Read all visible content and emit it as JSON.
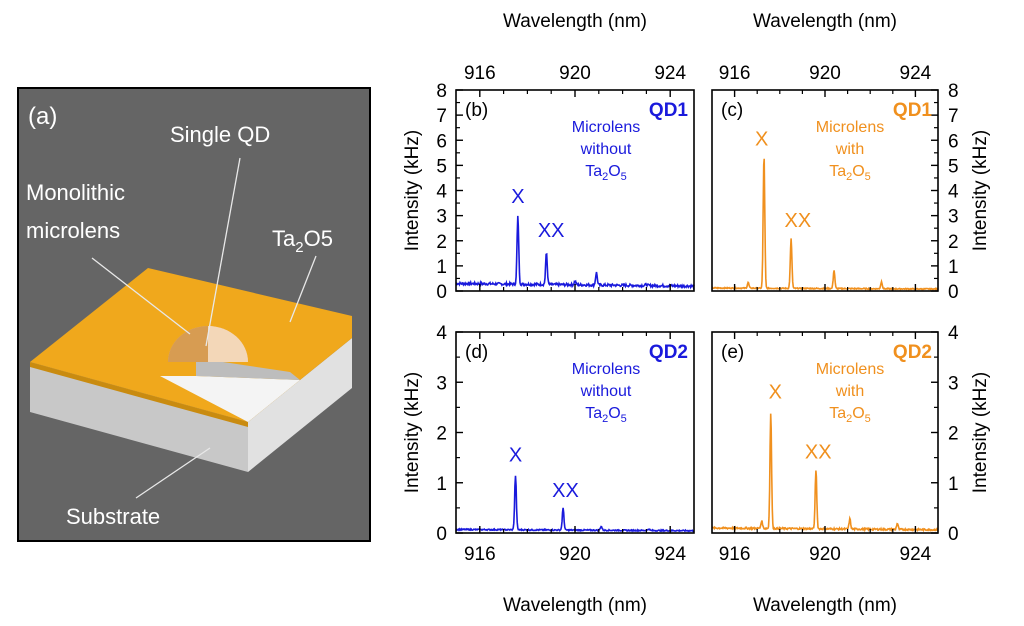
{
  "colors": {
    "blue": "#1a1adc",
    "orange": "#f0901e",
    "tantalum": "#f0a81c",
    "panel_bg": "#656565",
    "frame": "#000000"
  },
  "panel_a": {
    "label": "(a)",
    "callouts": {
      "single_qd": "Single QD",
      "monolithic_1": "Monolithic",
      "monolithic_2": "microlens",
      "ta_base": "Ta",
      "ta_sub": "2",
      "ta_mid": "O",
      "ta_sub2": "5",
      "substrate": "Substrate"
    }
  },
  "axes_text": {
    "wavelength_label": "Wavelength (nm)",
    "intensity_label": "Intensity (kHz)"
  },
  "chart_data": [
    {
      "id": "b",
      "type": "line",
      "label": "(b)",
      "dot": "QD1",
      "note": [
        "Microlens",
        "without",
        "Ta",
        "2",
        "O",
        "5"
      ],
      "color": "#1a1adc",
      "xlim": [
        915,
        925
      ],
      "ylim": [
        0,
        8
      ],
      "xticks": [
        916,
        920,
        924
      ],
      "yticks": [
        0,
        1,
        2,
        3,
        4,
        5,
        6,
        7,
        8
      ],
      "x_top_label": "Wavelength (nm)",
      "x_bottom_label": "",
      "y_label_side": "left",
      "y_label": "Intensity (kHz)",
      "baseline": 0.3,
      "peaks": [
        {
          "x": 917.6,
          "y": 3.0,
          "w": 0.05
        },
        {
          "x": 918.8,
          "y": 1.55,
          "w": 0.05
        },
        {
          "x": 920.0,
          "y": 0.45,
          "w": 0.05
        },
        {
          "x": 920.9,
          "y": 0.8,
          "w": 0.05
        },
        {
          "x": 923.0,
          "y": 0.35,
          "w": 0.05
        }
      ],
      "annotations": [
        {
          "text": "X",
          "x": 917.6,
          "y": 3.5
        },
        {
          "text": "XX",
          "x": 919.0,
          "y": 2.15
        }
      ]
    },
    {
      "id": "c",
      "type": "line",
      "label": "(c)",
      "dot": "QD1",
      "note": [
        "Microlens",
        "with",
        "Ta",
        "2",
        "O",
        "5"
      ],
      "color": "#f0901e",
      "xlim": [
        915,
        925
      ],
      "ylim": [
        0,
        8
      ],
      "xticks": [
        916,
        920,
        924
      ],
      "yticks": [
        0,
        1,
        2,
        3,
        4,
        5,
        6,
        7,
        8
      ],
      "x_top_label": "Wavelength (nm)",
      "x_bottom_label": "",
      "y_label_side": "right",
      "y_label": "Intensity (kHz)",
      "baseline": 0.12,
      "peaks": [
        {
          "x": 916.6,
          "y": 0.35,
          "w": 0.05
        },
        {
          "x": 917.3,
          "y": 5.45,
          "w": 0.05
        },
        {
          "x": 918.5,
          "y": 2.1,
          "w": 0.05
        },
        {
          "x": 920.4,
          "y": 0.85,
          "w": 0.05
        },
        {
          "x": 922.5,
          "y": 0.4,
          "w": 0.05
        }
      ],
      "annotations": [
        {
          "text": "X",
          "x": 917.2,
          "y": 5.8
        },
        {
          "text": "XX",
          "x": 918.8,
          "y": 2.55
        }
      ]
    },
    {
      "id": "d",
      "type": "line",
      "label": "(d)",
      "dot": "QD2",
      "note": [
        "Microlens",
        "without",
        "Ta",
        "2",
        "O",
        "5"
      ],
      "color": "#1a1adc",
      "xlim": [
        915,
        925
      ],
      "ylim": [
        0,
        4
      ],
      "xticks": [
        916,
        920,
        924
      ],
      "yticks": [
        0,
        1,
        2,
        3,
        4
      ],
      "x_top_label": "",
      "x_bottom_label": "Wavelength (nm)",
      "y_label_side": "left",
      "y_label": "Intensity (kHz)",
      "baseline": 0.07,
      "peaks": [
        {
          "x": 917.5,
          "y": 1.15,
          "w": 0.05
        },
        {
          "x": 919.5,
          "y": 0.5,
          "w": 0.05
        },
        {
          "x": 921.1,
          "y": 0.15,
          "w": 0.05
        },
        {
          "x": 923.1,
          "y": 0.1,
          "w": 0.05
        }
      ],
      "annotations": [
        {
          "text": "X",
          "x": 917.5,
          "y": 1.42
        },
        {
          "text": "XX",
          "x": 919.6,
          "y": 0.72
        }
      ]
    },
    {
      "id": "e",
      "type": "line",
      "label": "(e)",
      "dot": "QD2",
      "note": [
        "Microlens",
        "with",
        "Ta",
        "2",
        "O",
        "5"
      ],
      "color": "#f0901e",
      "xlim": [
        915,
        925
      ],
      "ylim": [
        0,
        4
      ],
      "xticks": [
        916,
        920,
        924
      ],
      "yticks": [
        0,
        1,
        2,
        3,
        4
      ],
      "x_top_label": "",
      "x_bottom_label": "Wavelength (nm)",
      "y_label_side": "right",
      "y_label": "Intensity (kHz)",
      "baseline": 0.1,
      "peaks": [
        {
          "x": 917.2,
          "y": 0.25,
          "w": 0.05
        },
        {
          "x": 917.6,
          "y": 2.4,
          "w": 0.05
        },
        {
          "x": 919.6,
          "y": 1.28,
          "w": 0.05
        },
        {
          "x": 921.1,
          "y": 0.3,
          "w": 0.05
        },
        {
          "x": 923.2,
          "y": 0.22,
          "w": 0.05
        }
      ],
      "annotations": [
        {
          "text": "X",
          "x": 917.8,
          "y": 2.68
        },
        {
          "text": "XX",
          "x": 919.7,
          "y": 1.48
        }
      ]
    }
  ]
}
